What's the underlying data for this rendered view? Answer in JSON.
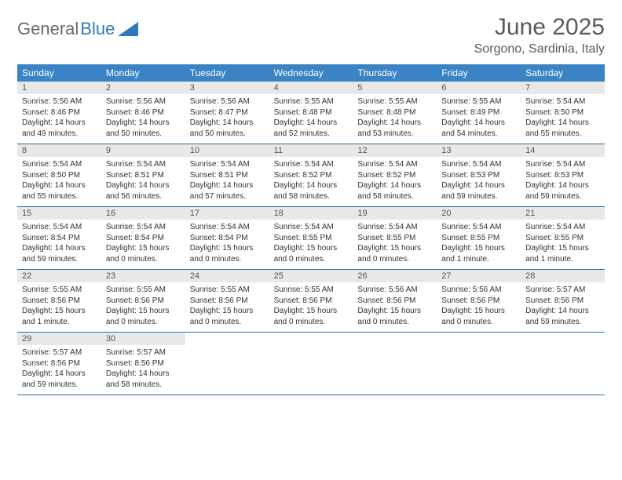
{
  "brand": {
    "part1": "General",
    "part2": "Blue"
  },
  "title": "June 2025",
  "location": "Sorgono, Sardinia, Italy",
  "colors": {
    "header_bg": "#3a84c5",
    "header_text": "#ffffff",
    "daynum_bg": "#e8e8e8",
    "week_border": "#2f6aa0",
    "brand_gray": "#6a6a6a",
    "brand_blue": "#2f78bd"
  },
  "weekdays": [
    "Sunday",
    "Monday",
    "Tuesday",
    "Wednesday",
    "Thursday",
    "Friday",
    "Saturday"
  ],
  "weeks": [
    [
      {
        "n": "1",
        "sr": "5:56 AM",
        "ss": "8:46 PM",
        "dl": "14 hours and 49 minutes."
      },
      {
        "n": "2",
        "sr": "5:56 AM",
        "ss": "8:46 PM",
        "dl": "14 hours and 50 minutes."
      },
      {
        "n": "3",
        "sr": "5:56 AM",
        "ss": "8:47 PM",
        "dl": "14 hours and 50 minutes."
      },
      {
        "n": "4",
        "sr": "5:55 AM",
        "ss": "8:48 PM",
        "dl": "14 hours and 52 minutes."
      },
      {
        "n": "5",
        "sr": "5:55 AM",
        "ss": "8:48 PM",
        "dl": "14 hours and 53 minutes."
      },
      {
        "n": "6",
        "sr": "5:55 AM",
        "ss": "8:49 PM",
        "dl": "14 hours and 54 minutes."
      },
      {
        "n": "7",
        "sr": "5:54 AM",
        "ss": "8:50 PM",
        "dl": "14 hours and 55 minutes."
      }
    ],
    [
      {
        "n": "8",
        "sr": "5:54 AM",
        "ss": "8:50 PM",
        "dl": "14 hours and 55 minutes."
      },
      {
        "n": "9",
        "sr": "5:54 AM",
        "ss": "8:51 PM",
        "dl": "14 hours and 56 minutes."
      },
      {
        "n": "10",
        "sr": "5:54 AM",
        "ss": "8:51 PM",
        "dl": "14 hours and 57 minutes."
      },
      {
        "n": "11",
        "sr": "5:54 AM",
        "ss": "8:52 PM",
        "dl": "14 hours and 58 minutes."
      },
      {
        "n": "12",
        "sr": "5:54 AM",
        "ss": "8:52 PM",
        "dl": "14 hours and 58 minutes."
      },
      {
        "n": "13",
        "sr": "5:54 AM",
        "ss": "8:53 PM",
        "dl": "14 hours and 59 minutes."
      },
      {
        "n": "14",
        "sr": "5:54 AM",
        "ss": "8:53 PM",
        "dl": "14 hours and 59 minutes."
      }
    ],
    [
      {
        "n": "15",
        "sr": "5:54 AM",
        "ss": "8:54 PM",
        "dl": "14 hours and 59 minutes."
      },
      {
        "n": "16",
        "sr": "5:54 AM",
        "ss": "8:54 PM",
        "dl": "15 hours and 0 minutes."
      },
      {
        "n": "17",
        "sr": "5:54 AM",
        "ss": "8:54 PM",
        "dl": "15 hours and 0 minutes."
      },
      {
        "n": "18",
        "sr": "5:54 AM",
        "ss": "8:55 PM",
        "dl": "15 hours and 0 minutes."
      },
      {
        "n": "19",
        "sr": "5:54 AM",
        "ss": "8:55 PM",
        "dl": "15 hours and 0 minutes."
      },
      {
        "n": "20",
        "sr": "5:54 AM",
        "ss": "8:55 PM",
        "dl": "15 hours and 1 minute."
      },
      {
        "n": "21",
        "sr": "5:54 AM",
        "ss": "8:55 PM",
        "dl": "15 hours and 1 minute."
      }
    ],
    [
      {
        "n": "22",
        "sr": "5:55 AM",
        "ss": "8:56 PM",
        "dl": "15 hours and 1 minute."
      },
      {
        "n": "23",
        "sr": "5:55 AM",
        "ss": "8:56 PM",
        "dl": "15 hours and 0 minutes."
      },
      {
        "n": "24",
        "sr": "5:55 AM",
        "ss": "8:56 PM",
        "dl": "15 hours and 0 minutes."
      },
      {
        "n": "25",
        "sr": "5:55 AM",
        "ss": "8:56 PM",
        "dl": "15 hours and 0 minutes."
      },
      {
        "n": "26",
        "sr": "5:56 AM",
        "ss": "8:56 PM",
        "dl": "15 hours and 0 minutes."
      },
      {
        "n": "27",
        "sr": "5:56 AM",
        "ss": "8:56 PM",
        "dl": "15 hours and 0 minutes."
      },
      {
        "n": "28",
        "sr": "5:57 AM",
        "ss": "8:56 PM",
        "dl": "14 hours and 59 minutes."
      }
    ],
    [
      {
        "n": "29",
        "sr": "5:57 AM",
        "ss": "8:56 PM",
        "dl": "14 hours and 59 minutes."
      },
      {
        "n": "30",
        "sr": "5:57 AM",
        "ss": "8:56 PM",
        "dl": "14 hours and 58 minutes."
      },
      null,
      null,
      null,
      null,
      null
    ]
  ],
  "labels": {
    "sunrise": "Sunrise:",
    "sunset": "Sunset:",
    "daylight": "Daylight:"
  }
}
